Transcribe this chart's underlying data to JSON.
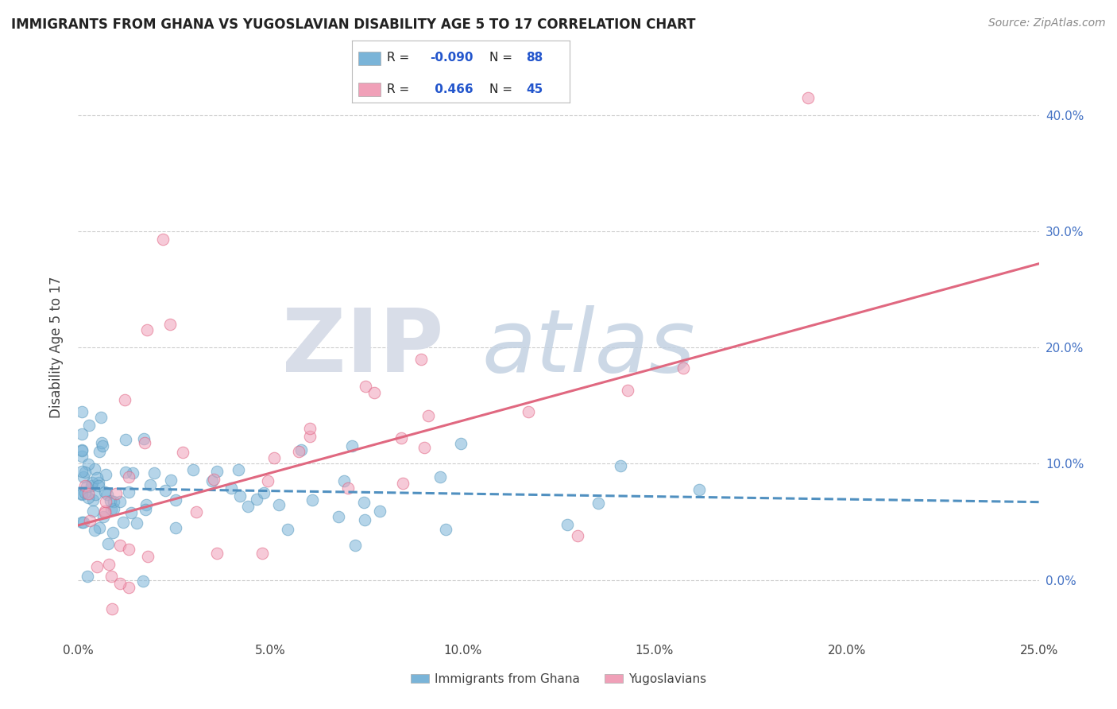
{
  "title": "IMMIGRANTS FROM GHANA VS YUGOSLAVIAN DISABILITY AGE 5 TO 17 CORRELATION CHART",
  "source": "Source: ZipAtlas.com",
  "ylabel": "Disability Age 5 to 17",
  "r_ghana": -0.09,
  "n_ghana": 88,
  "r_yugo": 0.466,
  "n_yugo": 45,
  "xlim": [
    0.0,
    0.25
  ],
  "ylim": [
    -0.05,
    0.45
  ],
  "ytick_vals": [
    0.0,
    0.1,
    0.2,
    0.3,
    0.4
  ],
  "ytick_labels": [
    "0.0%",
    "10.0%",
    "20.0%",
    "30.0%",
    "40.0%"
  ],
  "xtick_vals": [
    0.0,
    0.05,
    0.1,
    0.15,
    0.2,
    0.25
  ],
  "xtick_labels": [
    "0.0%",
    "5.0%",
    "10.0%",
    "15.0%",
    "20.0%",
    "25.0%"
  ],
  "color_ghana": "#7ab4d8",
  "color_ghana_dark": "#5a9abf",
  "color_yugo": "#f0a0b8",
  "color_yugo_dark": "#e06080",
  "color_ghana_line": "#5090c0",
  "color_yugo_line": "#e06880",
  "background_color": "#ffffff",
  "ghana_line_x": [
    0.0,
    0.25
  ],
  "ghana_line_y": [
    0.079,
    0.067
  ],
  "yugo_line_x": [
    0.0,
    0.25
  ],
  "yugo_line_y": [
    0.047,
    0.272
  ],
  "legend_r_color": "#2255cc",
  "legend_n_color": "#2255cc",
  "bottom_legend": [
    "Immigrants from Ghana",
    "Yugoslavians"
  ]
}
